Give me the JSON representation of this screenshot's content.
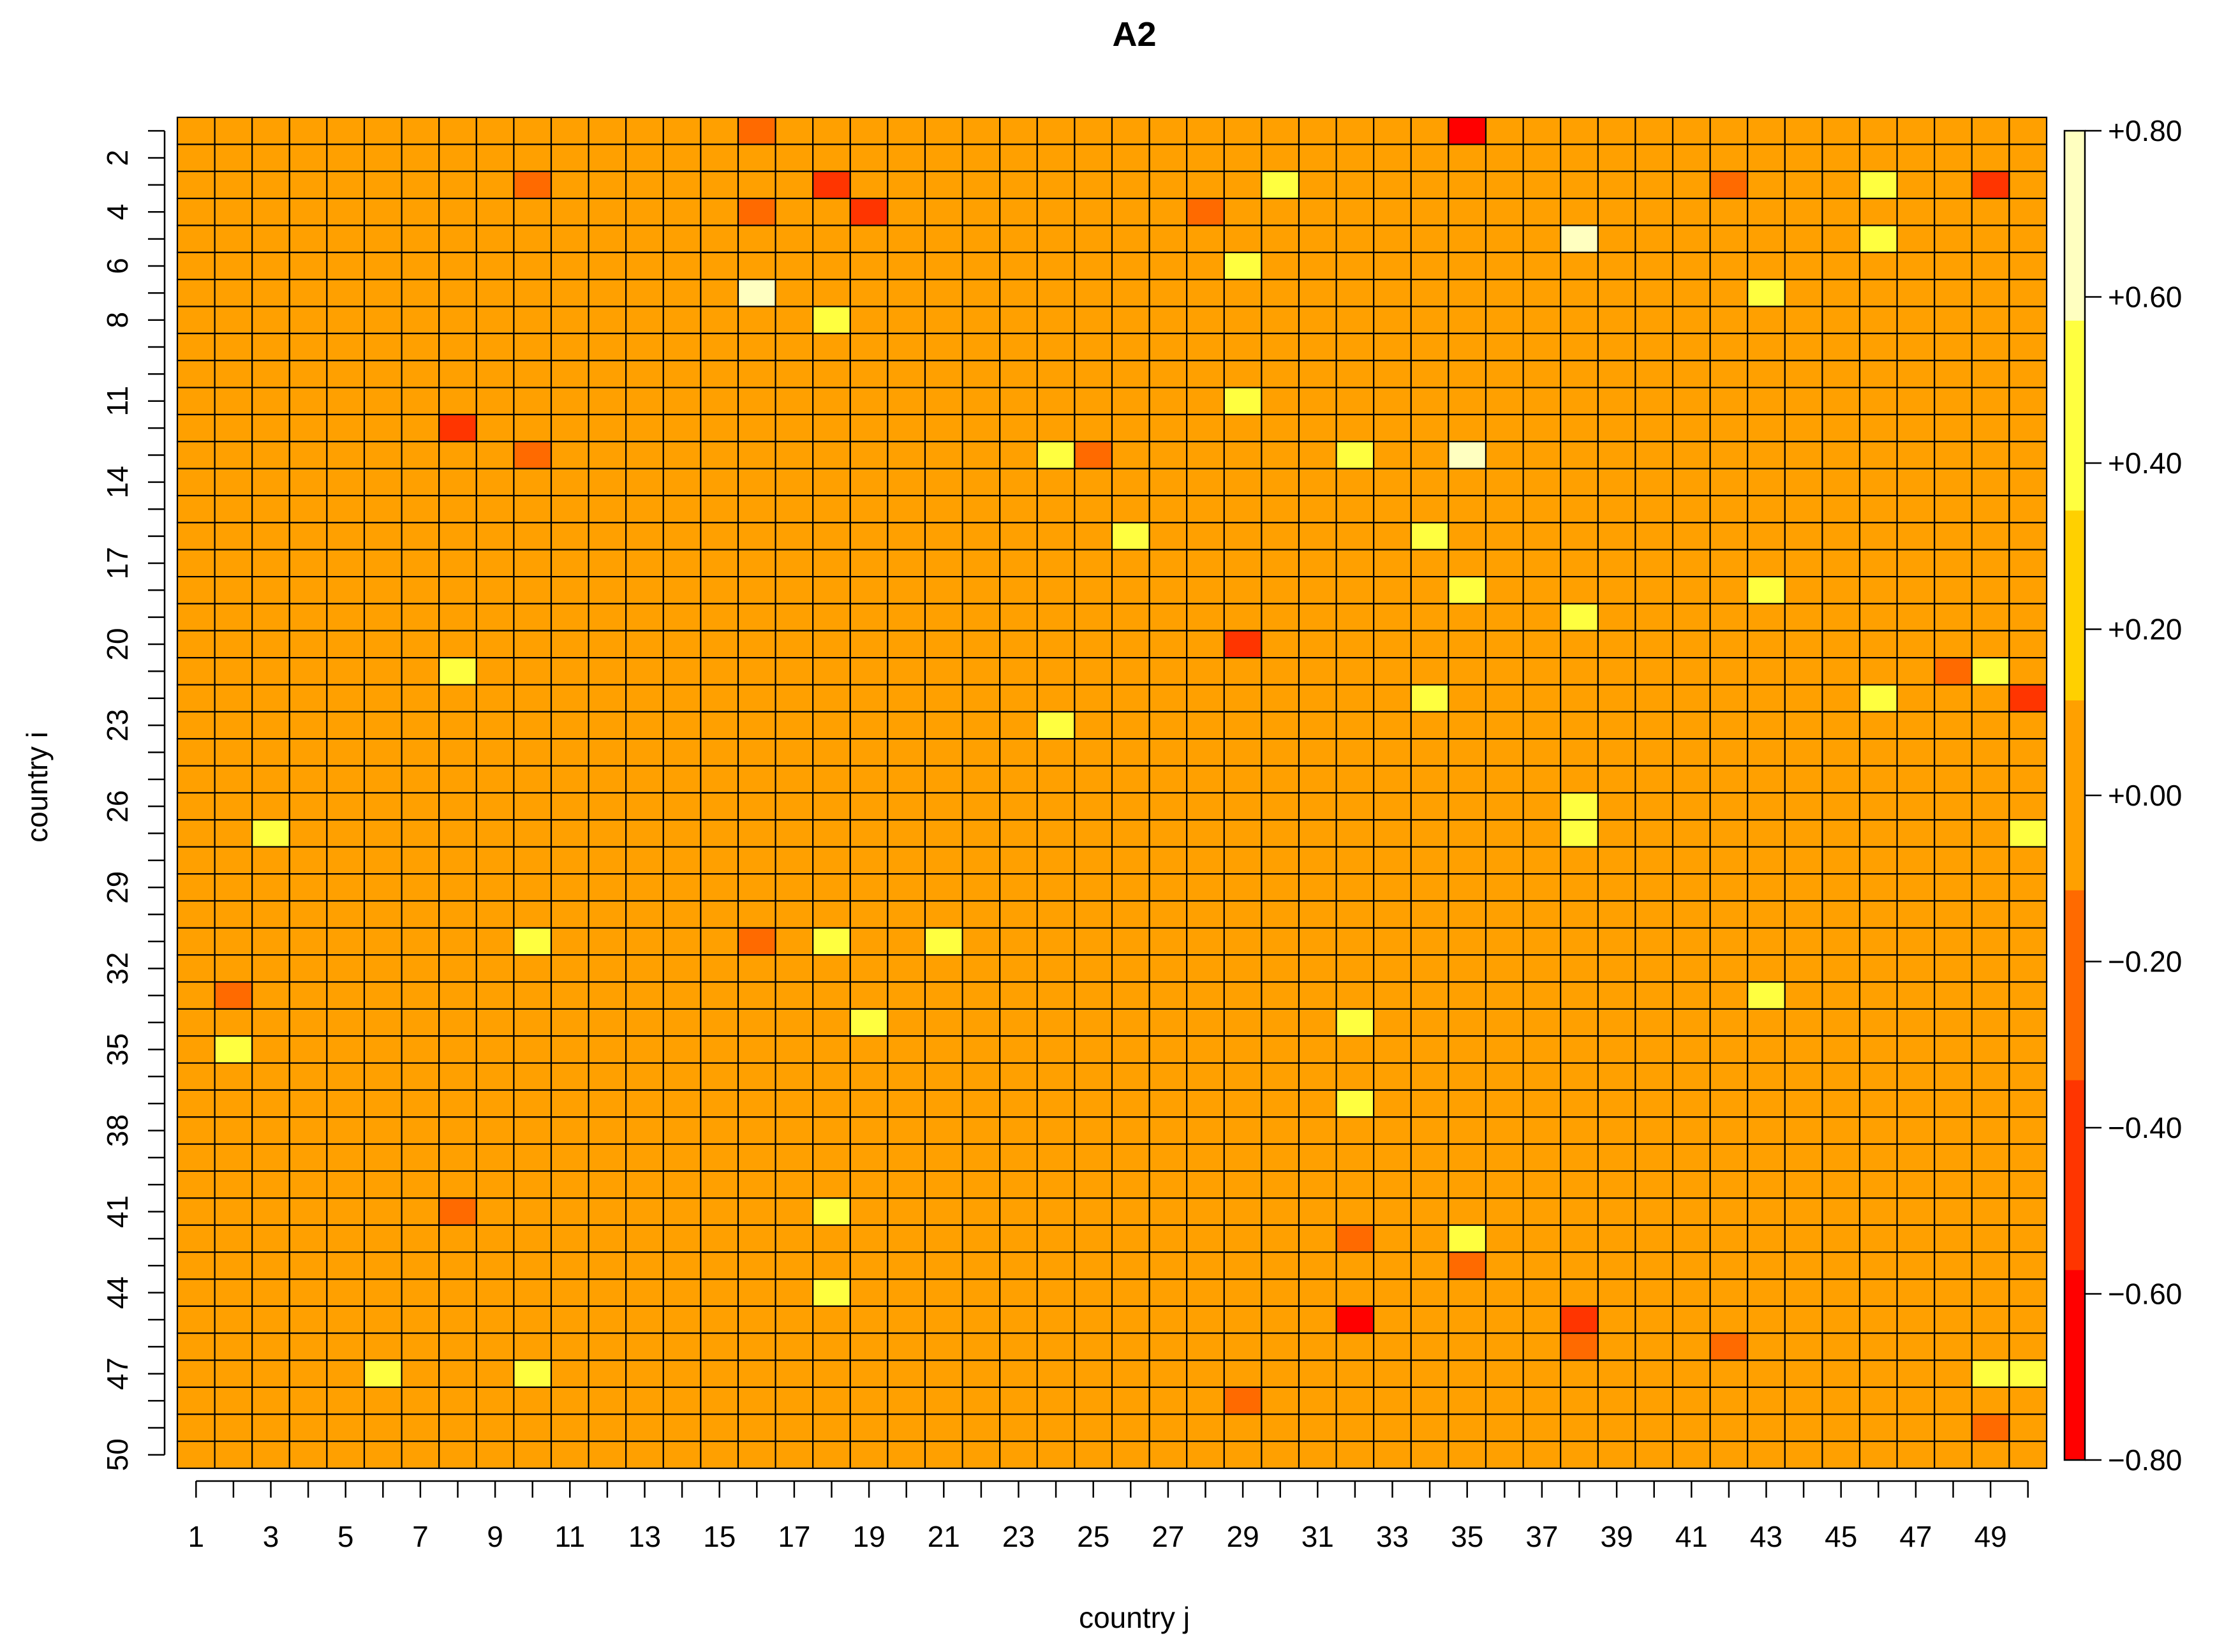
{
  "chart_data": {
    "type": "heatmap",
    "title": "A2",
    "xlabel": "country j",
    "ylabel": "country i",
    "rows": 50,
    "cols": 50,
    "x_tick_labels": [
      "1",
      "3",
      "5",
      "7",
      "9",
      "11",
      "13",
      "15",
      "17",
      "19",
      "21",
      "23",
      "25",
      "27",
      "29",
      "31",
      "33",
      "35",
      "37",
      "39",
      "41",
      "43",
      "45",
      "47",
      "49"
    ],
    "y_tick_labels": [
      "2",
      "4",
      "6",
      "8",
      "11",
      "14",
      "17",
      "20",
      "23",
      "26",
      "29",
      "32",
      "35",
      "38",
      "41",
      "44",
      "47",
      "50"
    ],
    "y_tick_rows": [
      2,
      4,
      6,
      8,
      11,
      14,
      17,
      20,
      23,
      26,
      29,
      32,
      35,
      38,
      41,
      44,
      47,
      50
    ],
    "value_range": [
      -0.8,
      0.8
    ],
    "base_value": 0.05,
    "colorbar": {
      "ticks": [
        0.8,
        0.6,
        0.4,
        0.2,
        0.0,
        -0.2,
        -0.4,
        -0.6,
        -0.8
      ],
      "tick_labels": [
        "+0.80",
        "+0.60",
        "+0.40",
        "+0.20",
        "+0.00",
        "−0.20",
        "−0.40",
        "−0.60",
        "−0.80"
      ],
      "colors_high_to_low": [
        "#FFFFC0",
        "#FFFF40",
        "#FFD000",
        "#FFA000",
        "#FF6A00",
        "#FF3500",
        "#FF0000"
      ],
      "placement": "right"
    },
    "cells": [
      [
        1,
        12,
        -0.1
      ],
      [
        1,
        16,
        -0.25
      ],
      [
        1,
        35,
        -0.75
      ],
      [
        2,
        2,
        -0.1
      ],
      [
        2,
        12,
        -0.1
      ],
      [
        2,
        18,
        -0.1
      ],
      [
        2,
        29,
        -0.1
      ],
      [
        2,
        43,
        -0.1
      ],
      [
        2,
        49,
        -0.1
      ],
      [
        3,
        10,
        -0.25
      ],
      [
        3,
        11,
        -0.1
      ],
      [
        3,
        16,
        -0.1
      ],
      [
        3,
        18,
        -0.5
      ],
      [
        3,
        21,
        -0.1
      ],
      [
        3,
        30,
        0.5
      ],
      [
        3,
        40,
        -0.1
      ],
      [
        3,
        42,
        -0.3
      ],
      [
        3,
        46,
        0.35
      ],
      [
        3,
        49,
        -0.5
      ],
      [
        4,
        4,
        -0.1
      ],
      [
        4,
        16,
        -0.25
      ],
      [
        4,
        19,
        -0.5
      ],
      [
        4,
        28,
        -0.25
      ],
      [
        4,
        42,
        -0.1
      ],
      [
        4,
        44,
        -0.1
      ],
      [
        4,
        48,
        -0.1
      ],
      [
        5,
        21,
        -0.1
      ],
      [
        5,
        38,
        0.75
      ],
      [
        5,
        46,
        0.35
      ],
      [
        6,
        8,
        -0.1
      ],
      [
        6,
        29,
        0.35
      ],
      [
        6,
        50,
        -0.1
      ],
      [
        7,
        16,
        0.75
      ],
      [
        7,
        19,
        -0.1
      ],
      [
        7,
        43,
        0.5
      ],
      [
        7,
        48,
        -0.1
      ],
      [
        7,
        49,
        -0.1
      ],
      [
        8,
        8,
        -0.1
      ],
      [
        8,
        11,
        -0.1
      ],
      [
        8,
        18,
        0.35
      ],
      [
        9,
        19,
        -0.1
      ],
      [
        10,
        6,
        -0.1
      ],
      [
        10,
        8,
        -0.1
      ],
      [
        10,
        15,
        -0.1
      ],
      [
        10,
        19,
        -0.1
      ],
      [
        10,
        30,
        -0.1
      ],
      [
        10,
        35,
        -0.1
      ],
      [
        10,
        46,
        -0.1
      ],
      [
        11,
        6,
        -0.1
      ],
      [
        11,
        12,
        -0.1
      ],
      [
        11,
        29,
        0.35
      ],
      [
        11,
        49,
        -0.1
      ],
      [
        12,
        8,
        -0.55
      ],
      [
        12,
        11,
        -0.1
      ],
      [
        12,
        12,
        -0.1
      ],
      [
        12,
        32,
        -0.1
      ],
      [
        12,
        45,
        -0.1
      ],
      [
        13,
        8,
        -0.1
      ],
      [
        13,
        10,
        -0.3
      ],
      [
        13,
        21,
        -0.1
      ],
      [
        13,
        24,
        0.35
      ],
      [
        13,
        25,
        -0.3
      ],
      [
        13,
        29,
        -0.1
      ],
      [
        13,
        32,
        0.5
      ],
      [
        13,
        34,
        -0.1
      ],
      [
        13,
        35,
        0.75
      ],
      [
        13,
        40,
        -0.1
      ],
      [
        14,
        6,
        -0.1
      ],
      [
        14,
        12,
        -0.1
      ],
      [
        15,
        11,
        -0.1
      ],
      [
        15,
        18,
        -0.1
      ],
      [
        15,
        40,
        -0.1
      ],
      [
        16,
        26,
        0.35
      ],
      [
        16,
        34,
        0.5
      ],
      [
        17,
        16,
        -0.1
      ],
      [
        17,
        31,
        -0.1
      ],
      [
        17,
        43,
        -0.1
      ],
      [
        18,
        2,
        -0.1
      ],
      [
        18,
        11,
        -0.1
      ],
      [
        18,
        13,
        -0.1
      ],
      [
        18,
        18,
        -0.1
      ],
      [
        18,
        21,
        -0.1
      ],
      [
        18,
        35,
        0.35
      ],
      [
        18,
        42,
        -0.1
      ],
      [
        18,
        43,
        0.35
      ],
      [
        19,
        19,
        -0.1
      ],
      [
        19,
        38,
        0.35
      ],
      [
        20,
        29,
        -0.5
      ],
      [
        20,
        46,
        -0.1
      ],
      [
        21,
        6,
        -0.1
      ],
      [
        21,
        8,
        0.35
      ],
      [
        21,
        38,
        -0.1
      ],
      [
        21,
        48,
        -0.3
      ],
      [
        21,
        49,
        0.5
      ],
      [
        22,
        3,
        -0.1
      ],
      [
        22,
        34,
        0.5
      ],
      [
        22,
        37,
        -0.1
      ],
      [
        22,
        38,
        -0.1
      ],
      [
        22,
        46,
        0.35
      ],
      [
        22,
        48,
        -0.1
      ],
      [
        22,
        50,
        -0.5
      ],
      [
        23,
        12,
        -0.1
      ],
      [
        23,
        24,
        0.35
      ],
      [
        24,
        18,
        -0.1
      ],
      [
        24,
        24,
        -0.1
      ],
      [
        24,
        48,
        -0.1
      ],
      [
        25,
        38,
        -0.1
      ],
      [
        26,
        10,
        -0.1
      ],
      [
        26,
        18,
        -0.1
      ],
      [
        26,
        38,
        0.35
      ],
      [
        27,
        3,
        0.35
      ],
      [
        27,
        28,
        -0.1
      ],
      [
        27,
        29,
        -0.1
      ],
      [
        27,
        38,
        0.35
      ],
      [
        27,
        50,
        0.35
      ],
      [
        28,
        6,
        -0.1
      ],
      [
        28,
        21,
        -0.1
      ],
      [
        28,
        28,
        -0.1
      ],
      [
        28,
        40,
        -0.1
      ],
      [
        28,
        44,
        -0.1
      ],
      [
        29,
        6,
        -0.1
      ],
      [
        29,
        40,
        -0.1
      ],
      [
        29,
        44,
        -0.1
      ],
      [
        29,
        49,
        -0.1
      ],
      [
        30,
        4,
        -0.1
      ],
      [
        30,
        15,
        -0.1
      ],
      [
        31,
        10,
        0.35
      ],
      [
        31,
        16,
        -0.3
      ],
      [
        31,
        18,
        0.5
      ],
      [
        31,
        21,
        0.35
      ],
      [
        31,
        32,
        -0.1
      ],
      [
        32,
        21,
        -0.1
      ],
      [
        32,
        31,
        -0.1
      ],
      [
        32,
        37,
        -0.1
      ],
      [
        33,
        2,
        -0.3
      ],
      [
        33,
        10,
        -0.1
      ],
      [
        33,
        16,
        -0.1
      ],
      [
        33,
        29,
        -0.1
      ],
      [
        33,
        42,
        -0.1
      ],
      [
        33,
        43,
        0.35
      ],
      [
        34,
        3,
        -0.1
      ],
      [
        34,
        8,
        -0.1
      ],
      [
        34,
        19,
        0.35
      ],
      [
        34,
        32,
        0.35
      ],
      [
        34,
        34,
        -0.1
      ],
      [
        34,
        40,
        -0.1
      ],
      [
        34,
        45,
        -0.1
      ],
      [
        34,
        46,
        -0.1
      ],
      [
        34,
        50,
        -0.1
      ],
      [
        35,
        2,
        0.5
      ],
      [
        35,
        6,
        -0.1
      ],
      [
        35,
        49,
        -0.1
      ],
      [
        36,
        25,
        -0.1
      ],
      [
        36,
        31,
        -0.1
      ],
      [
        36,
        35,
        -0.1
      ],
      [
        36,
        43,
        -0.1
      ],
      [
        37,
        32,
        0.35
      ],
      [
        37,
        37,
        -0.1
      ],
      [
        38,
        8,
        -0.1
      ],
      [
        38,
        12,
        -0.1
      ],
      [
        38,
        45,
        -0.1
      ],
      [
        39,
        10,
        -0.1
      ],
      [
        39,
        16,
        -0.1
      ],
      [
        39,
        34,
        -0.1
      ],
      [
        39,
        42,
        -0.1
      ],
      [
        40,
        10,
        -0.1
      ],
      [
        40,
        34,
        -0.1
      ],
      [
        40,
        46,
        -0.1
      ],
      [
        41,
        8,
        -0.3
      ],
      [
        41,
        11,
        -0.1
      ],
      [
        41,
        18,
        0.5
      ],
      [
        41,
        38,
        -0.1
      ],
      [
        41,
        48,
        -0.1
      ],
      [
        42,
        32,
        -0.3
      ],
      [
        42,
        35,
        0.35
      ],
      [
        42,
        37,
        -0.1
      ],
      [
        43,
        11,
        -0.1
      ],
      [
        43,
        18,
        -0.1
      ],
      [
        43,
        35,
        -0.3
      ],
      [
        44,
        18,
        0.5
      ],
      [
        45,
        32,
        -0.65
      ],
      [
        45,
        38,
        -0.55
      ],
      [
        45,
        40,
        -0.1
      ],
      [
        46,
        4,
        -0.1
      ],
      [
        46,
        16,
        -0.1
      ],
      [
        46,
        38,
        -0.3
      ],
      [
        46,
        40,
        -0.1
      ],
      [
        46,
        42,
        -0.3
      ],
      [
        46,
        44,
        -0.1
      ],
      [
        47,
        6,
        0.35
      ],
      [
        47,
        10,
        0.35
      ],
      [
        47,
        15,
        -0.1
      ],
      [
        47,
        49,
        0.5
      ],
      [
        47,
        50,
        0.35
      ],
      [
        48,
        11,
        -0.1
      ],
      [
        48,
        21,
        -0.1
      ],
      [
        48,
        29,
        -0.3
      ],
      [
        49,
        12,
        -0.1
      ],
      [
        49,
        22,
        -0.1
      ],
      [
        49,
        28,
        -0.1
      ],
      [
        49,
        32,
        -0.1
      ],
      [
        49,
        46,
        -0.1
      ],
      [
        49,
        49,
        -0.3
      ],
      [
        50,
        29,
        -0.1
      ],
      [
        50,
        43,
        -0.1
      ],
      [
        50,
        49,
        -0.1
      ],
      [
        50,
        50,
        -0.1
      ]
    ]
  }
}
